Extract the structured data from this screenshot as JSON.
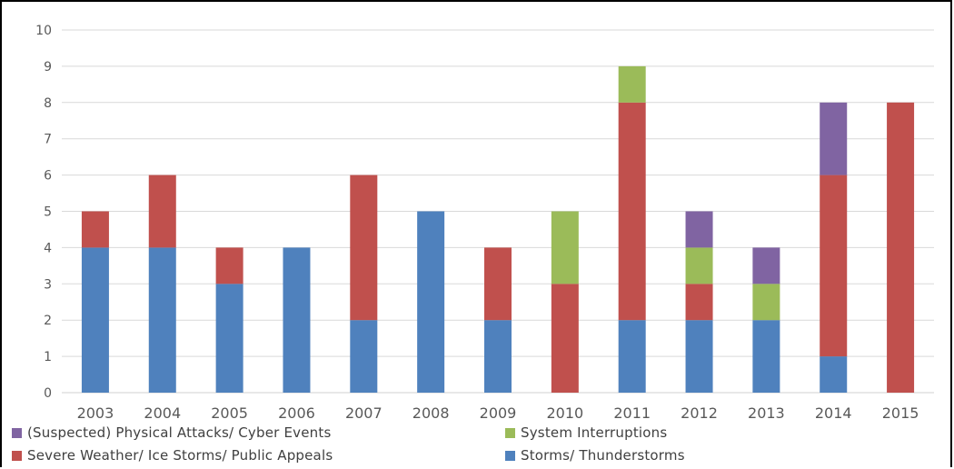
{
  "chart_data": {
    "type": "bar",
    "stacked": true,
    "categories": [
      "2003",
      "2004",
      "2005",
      "2006",
      "2007",
      "2008",
      "2009",
      "2010",
      "2011",
      "2012",
      "2013",
      "2014",
      "2015"
    ],
    "series": [
      {
        "name": "Storms/ Thunderstorms",
        "color": "#4f81bd",
        "values": [
          4,
          4,
          3,
          4,
          2,
          5,
          2,
          0,
          2,
          2,
          2,
          1,
          0
        ]
      },
      {
        "name": "Severe Weather/ Ice Storms/ Public Appeals",
        "color": "#c0504d",
        "values": [
          1,
          2,
          1,
          0,
          4,
          0,
          2,
          3,
          6,
          1,
          0,
          5,
          8
        ]
      },
      {
        "name": "System Interruptions",
        "color": "#9bbb59",
        "values": [
          0,
          0,
          0,
          0,
          0,
          0,
          0,
          2,
          1,
          1,
          1,
          0,
          0
        ]
      },
      {
        "name": "(Suspected) Physical Attacks/ Cyber Events",
        "color": "#8064a2",
        "values": [
          0,
          0,
          0,
          0,
          0,
          0,
          0,
          0,
          0,
          1,
          1,
          2,
          0
        ]
      }
    ],
    "y_ticks": [
      "0",
      "1",
      "2",
      "3",
      "4",
      "5",
      "6",
      "7",
      "8",
      "9",
      "10"
    ],
    "ylim": [
      0,
      10
    ],
    "grid": true,
    "legend_position": "bottom",
    "title": "",
    "xlabel": "",
    "ylabel": ""
  },
  "legend": [
    {
      "label": "(Suspected) Physical Attacks/ Cyber Events",
      "color": "#8064a2"
    },
    {
      "label": "System Interruptions",
      "color": "#9bbb59"
    },
    {
      "label": "Severe Weather/ Ice Storms/ Public Appeals",
      "color": "#c0504d"
    },
    {
      "label": "Storms/ Thunderstorms",
      "color": "#4f81bd"
    }
  ]
}
